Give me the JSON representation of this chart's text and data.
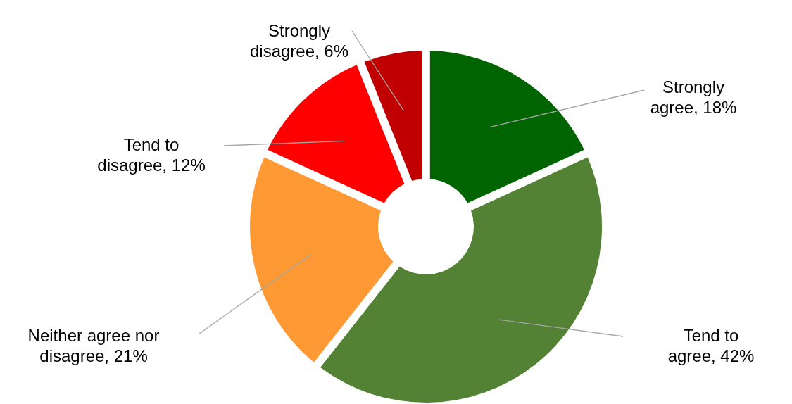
{
  "chart_data": {
    "type": "donut",
    "categories": [
      "Strongly agree",
      "Tend to agree",
      "Neither agree nor disagree",
      "Tend to disagree",
      "Strongly disagree"
    ],
    "values": [
      18,
      42,
      21,
      12,
      6
    ],
    "colors": [
      "#006400",
      "#548235",
      "#ff9933",
      "#ff0000",
      "#c00000"
    ],
    "value_labels": [
      "18%",
      "42%",
      "21%",
      "12%",
      "6%"
    ]
  }
}
